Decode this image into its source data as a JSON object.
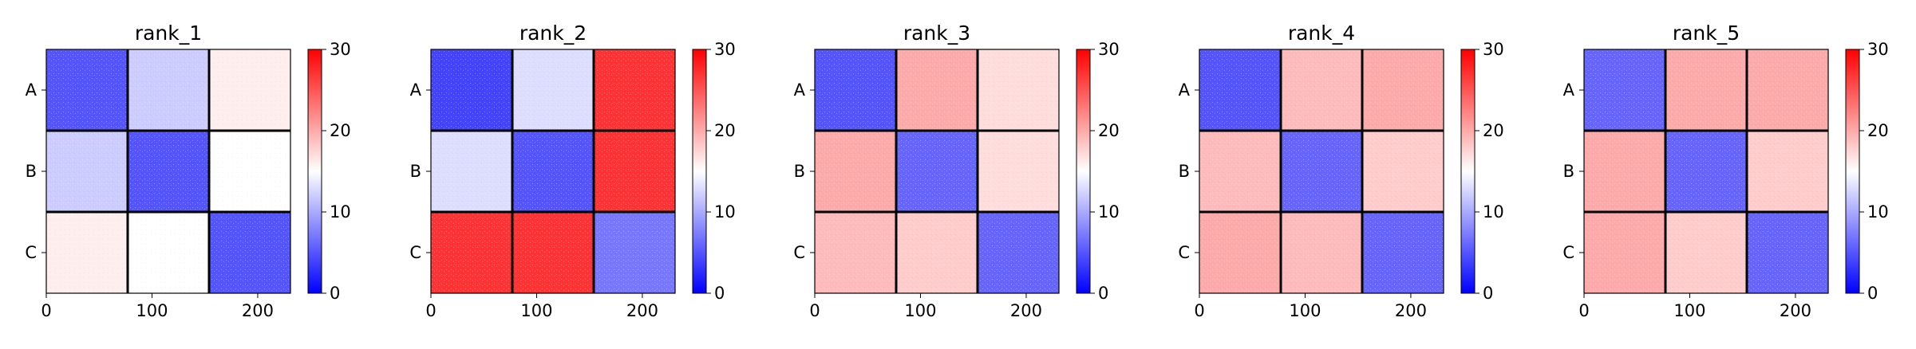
{
  "chart_data": [
    {
      "type": "heatmap",
      "title": "rank_1",
      "chains": [
        "A",
        "B",
        "C"
      ],
      "chain_boundaries": [
        77,
        154
      ],
      "x_ticks": [
        0,
        100,
        200
      ],
      "xlim": [
        0,
        231
      ],
      "colorbar": {
        "range": [
          0,
          30
        ],
        "ticks": [
          0,
          10,
          20,
          30
        ],
        "colormap": "bwr",
        "colors": [
          "#0000ff",
          "#ffffff",
          "#ff0000"
        ]
      },
      "block_mean": [
        [
          5,
          12,
          16
        ],
        [
          12,
          5,
          15
        ],
        [
          16,
          15,
          5
        ]
      ]
    },
    {
      "type": "heatmap",
      "title": "rank_2",
      "chains": [
        "A",
        "B",
        "C"
      ],
      "chain_boundaries": [
        77,
        154
      ],
      "x_ticks": [
        0,
        100,
        200
      ],
      "xlim": [
        0,
        231
      ],
      "colorbar": {
        "range": [
          0,
          30
        ],
        "ticks": [
          0,
          10,
          20,
          30
        ],
        "colormap": "bwr",
        "colors": [
          "#0000ff",
          "#ffffff",
          "#ff0000"
        ]
      },
      "block_mean": [
        [
          4,
          13,
          27
        ],
        [
          13,
          5,
          27
        ],
        [
          27,
          27,
          7
        ]
      ]
    },
    {
      "type": "heatmap",
      "title": "rank_3",
      "chains": [
        "A",
        "B",
        "C"
      ],
      "chain_boundaries": [
        77,
        154
      ],
      "x_ticks": [
        0,
        100,
        200
      ],
      "xlim": [
        0,
        231
      ],
      "colorbar": {
        "range": [
          0,
          30
        ],
        "ticks": [
          0,
          10,
          20,
          30
        ],
        "colormap": "bwr",
        "colors": [
          "#0000ff",
          "#ffffff",
          "#ff0000"
        ]
      },
      "block_mean": [
        [
          5,
          20,
          17
        ],
        [
          20,
          6,
          17
        ],
        [
          19,
          18,
          6
        ]
      ]
    },
    {
      "type": "heatmap",
      "title": "rank_4",
      "chains": [
        "A",
        "B",
        "C"
      ],
      "chain_boundaries": [
        77,
        154
      ],
      "x_ticks": [
        0,
        100,
        200
      ],
      "xlim": [
        0,
        231
      ],
      "colorbar": {
        "range": [
          0,
          30
        ],
        "ticks": [
          0,
          10,
          20,
          30
        ],
        "colormap": "bwr",
        "colors": [
          "#0000ff",
          "#ffffff",
          "#ff0000"
        ]
      },
      "block_mean": [
        [
          5,
          19,
          20
        ],
        [
          19,
          6,
          18
        ],
        [
          20,
          19,
          6
        ]
      ]
    },
    {
      "type": "heatmap",
      "title": "rank_5",
      "chains": [
        "A",
        "B",
        "C"
      ],
      "chain_boundaries": [
        77,
        154
      ],
      "x_ticks": [
        0,
        100,
        200
      ],
      "xlim": [
        0,
        231
      ],
      "colorbar": {
        "range": [
          0,
          30
        ],
        "ticks": [
          0,
          10,
          20,
          30
        ],
        "colormap": "bwr",
        "colors": [
          "#0000ff",
          "#ffffff",
          "#ff0000"
        ]
      },
      "block_mean": [
        [
          6,
          20,
          20
        ],
        [
          20,
          6,
          18
        ],
        [
          20,
          18,
          6
        ]
      ]
    }
  ]
}
